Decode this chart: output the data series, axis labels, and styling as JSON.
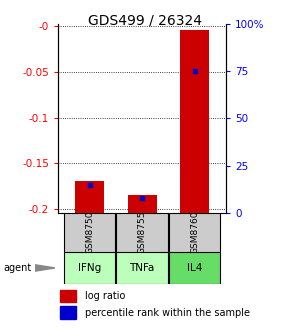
{
  "title": "GDS499 / 26324",
  "samples": [
    "GSM8750",
    "GSM8755",
    "GSM8760"
  ],
  "agents": [
    "IFNg",
    "TNFa",
    "IL4"
  ],
  "log_ratios": [
    -0.17,
    -0.185,
    -0.004
  ],
  "percentile_ranks": [
    15,
    8,
    75
  ],
  "ylim": [
    -0.205,
    0.003
  ],
  "yticks_left": [
    0,
    -0.05,
    -0.1,
    -0.15,
    -0.2
  ],
  "ytick_labels_left": [
    "-0",
    "-0.05",
    "-0.1",
    "-0.15",
    "-0.2"
  ],
  "yticks_right_pct": [
    100,
    75,
    50,
    25,
    0
  ],
  "ytick_labels_right": [
    "100%",
    "75",
    "50",
    "25",
    "0"
  ],
  "bar_color": "#cc0000",
  "dot_color": "#0000cc",
  "bar_width": 0.55,
  "agent_colors": [
    "#bbffbb",
    "#bbffbb",
    "#66dd66"
  ],
  "sample_box_color": "#cccccc",
  "title_fontsize": 10,
  "axis_fontsize": 7.5,
  "legend_fontsize": 7,
  "bar_bottom": -0.205
}
